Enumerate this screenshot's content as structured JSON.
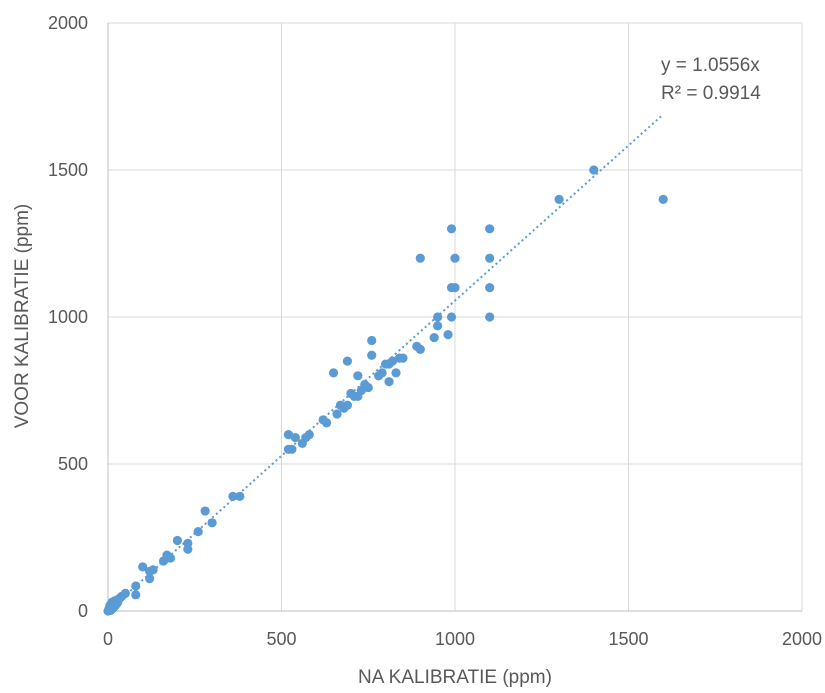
{
  "chart_data": {
    "type": "scatter",
    "xlabel": "NA KALIBRATIE (ppm)",
    "ylabel": "VOOR KALIBRATIE (ppm)",
    "xlim": [
      0,
      2000
    ],
    "ylim": [
      0,
      2000
    ],
    "xticks": [
      0,
      500,
      1000,
      1500,
      2000
    ],
    "yticks": [
      0,
      500,
      1000,
      1500,
      2000
    ],
    "grid": true,
    "marker_color": "#5B9BD5",
    "trendline": {
      "type": "linear-through-origin",
      "slope": 1.0556,
      "x_range": [
        0,
        1600
      ],
      "color": "#5B9BD5",
      "style": "dotted",
      "equation": "y = 1.0556x",
      "r_squared": "R² = 0.9914"
    },
    "series": [
      {
        "points": [
          [
            0,
            0
          ],
          [
            2,
            5
          ],
          [
            4,
            10
          ],
          [
            5,
            15
          ],
          [
            6,
            20
          ],
          [
            8,
            2
          ],
          [
            10,
            25
          ],
          [
            12,
            30
          ],
          [
            15,
            10
          ],
          [
            18,
            15
          ],
          [
            20,
            35
          ],
          [
            22,
            20
          ],
          [
            25,
            25
          ],
          [
            28,
            30
          ],
          [
            30,
            40
          ],
          [
            35,
            45
          ],
          [
            40,
            50
          ],
          [
            50,
            60
          ],
          [
            80,
            55
          ],
          [
            80,
            85
          ],
          [
            100,
            150
          ],
          [
            120,
            110
          ],
          [
            120,
            135
          ],
          [
            130,
            140
          ],
          [
            160,
            170
          ],
          [
            170,
            190
          ],
          [
            180,
            180
          ],
          [
            200,
            240
          ],
          [
            230,
            210
          ],
          [
            230,
            230
          ],
          [
            260,
            270
          ],
          [
            280,
            340
          ],
          [
            300,
            300
          ],
          [
            360,
            390
          ],
          [
            380,
            390
          ],
          [
            520,
            600
          ],
          [
            520,
            550
          ],
          [
            530,
            550
          ],
          [
            540,
            590
          ],
          [
            560,
            570
          ],
          [
            570,
            590
          ],
          [
            580,
            600
          ],
          [
            620,
            650
          ],
          [
            630,
            640
          ],
          [
            650,
            810
          ],
          [
            660,
            670
          ],
          [
            670,
            700
          ],
          [
            680,
            690
          ],
          [
            690,
            700
          ],
          [
            690,
            850
          ],
          [
            700,
            740
          ],
          [
            710,
            730
          ],
          [
            720,
            730
          ],
          [
            720,
            800
          ],
          [
            730,
            750
          ],
          [
            740,
            770
          ],
          [
            750,
            760
          ],
          [
            760,
            870
          ],
          [
            760,
            920
          ],
          [
            780,
            800
          ],
          [
            790,
            810
          ],
          [
            800,
            840
          ],
          [
            810,
            780
          ],
          [
            810,
            840
          ],
          [
            820,
            850
          ],
          [
            830,
            810
          ],
          [
            840,
            860
          ],
          [
            850,
            860
          ],
          [
            890,
            900
          ],
          [
            900,
            890
          ],
          [
            900,
            1200
          ],
          [
            940,
            930
          ],
          [
            950,
            970
          ],
          [
            950,
            1000
          ],
          [
            980,
            940
          ],
          [
            990,
            1100
          ],
          [
            990,
            1300
          ],
          [
            990,
            1000
          ],
          [
            1000,
            1100
          ],
          [
            1000,
            1200
          ],
          [
            1100,
            1000
          ],
          [
            1100,
            1100
          ],
          [
            1100,
            1200
          ],
          [
            1100,
            1300
          ],
          [
            1300,
            1400
          ],
          [
            1400,
            1500
          ],
          [
            1600,
            1400
          ]
        ]
      }
    ]
  }
}
